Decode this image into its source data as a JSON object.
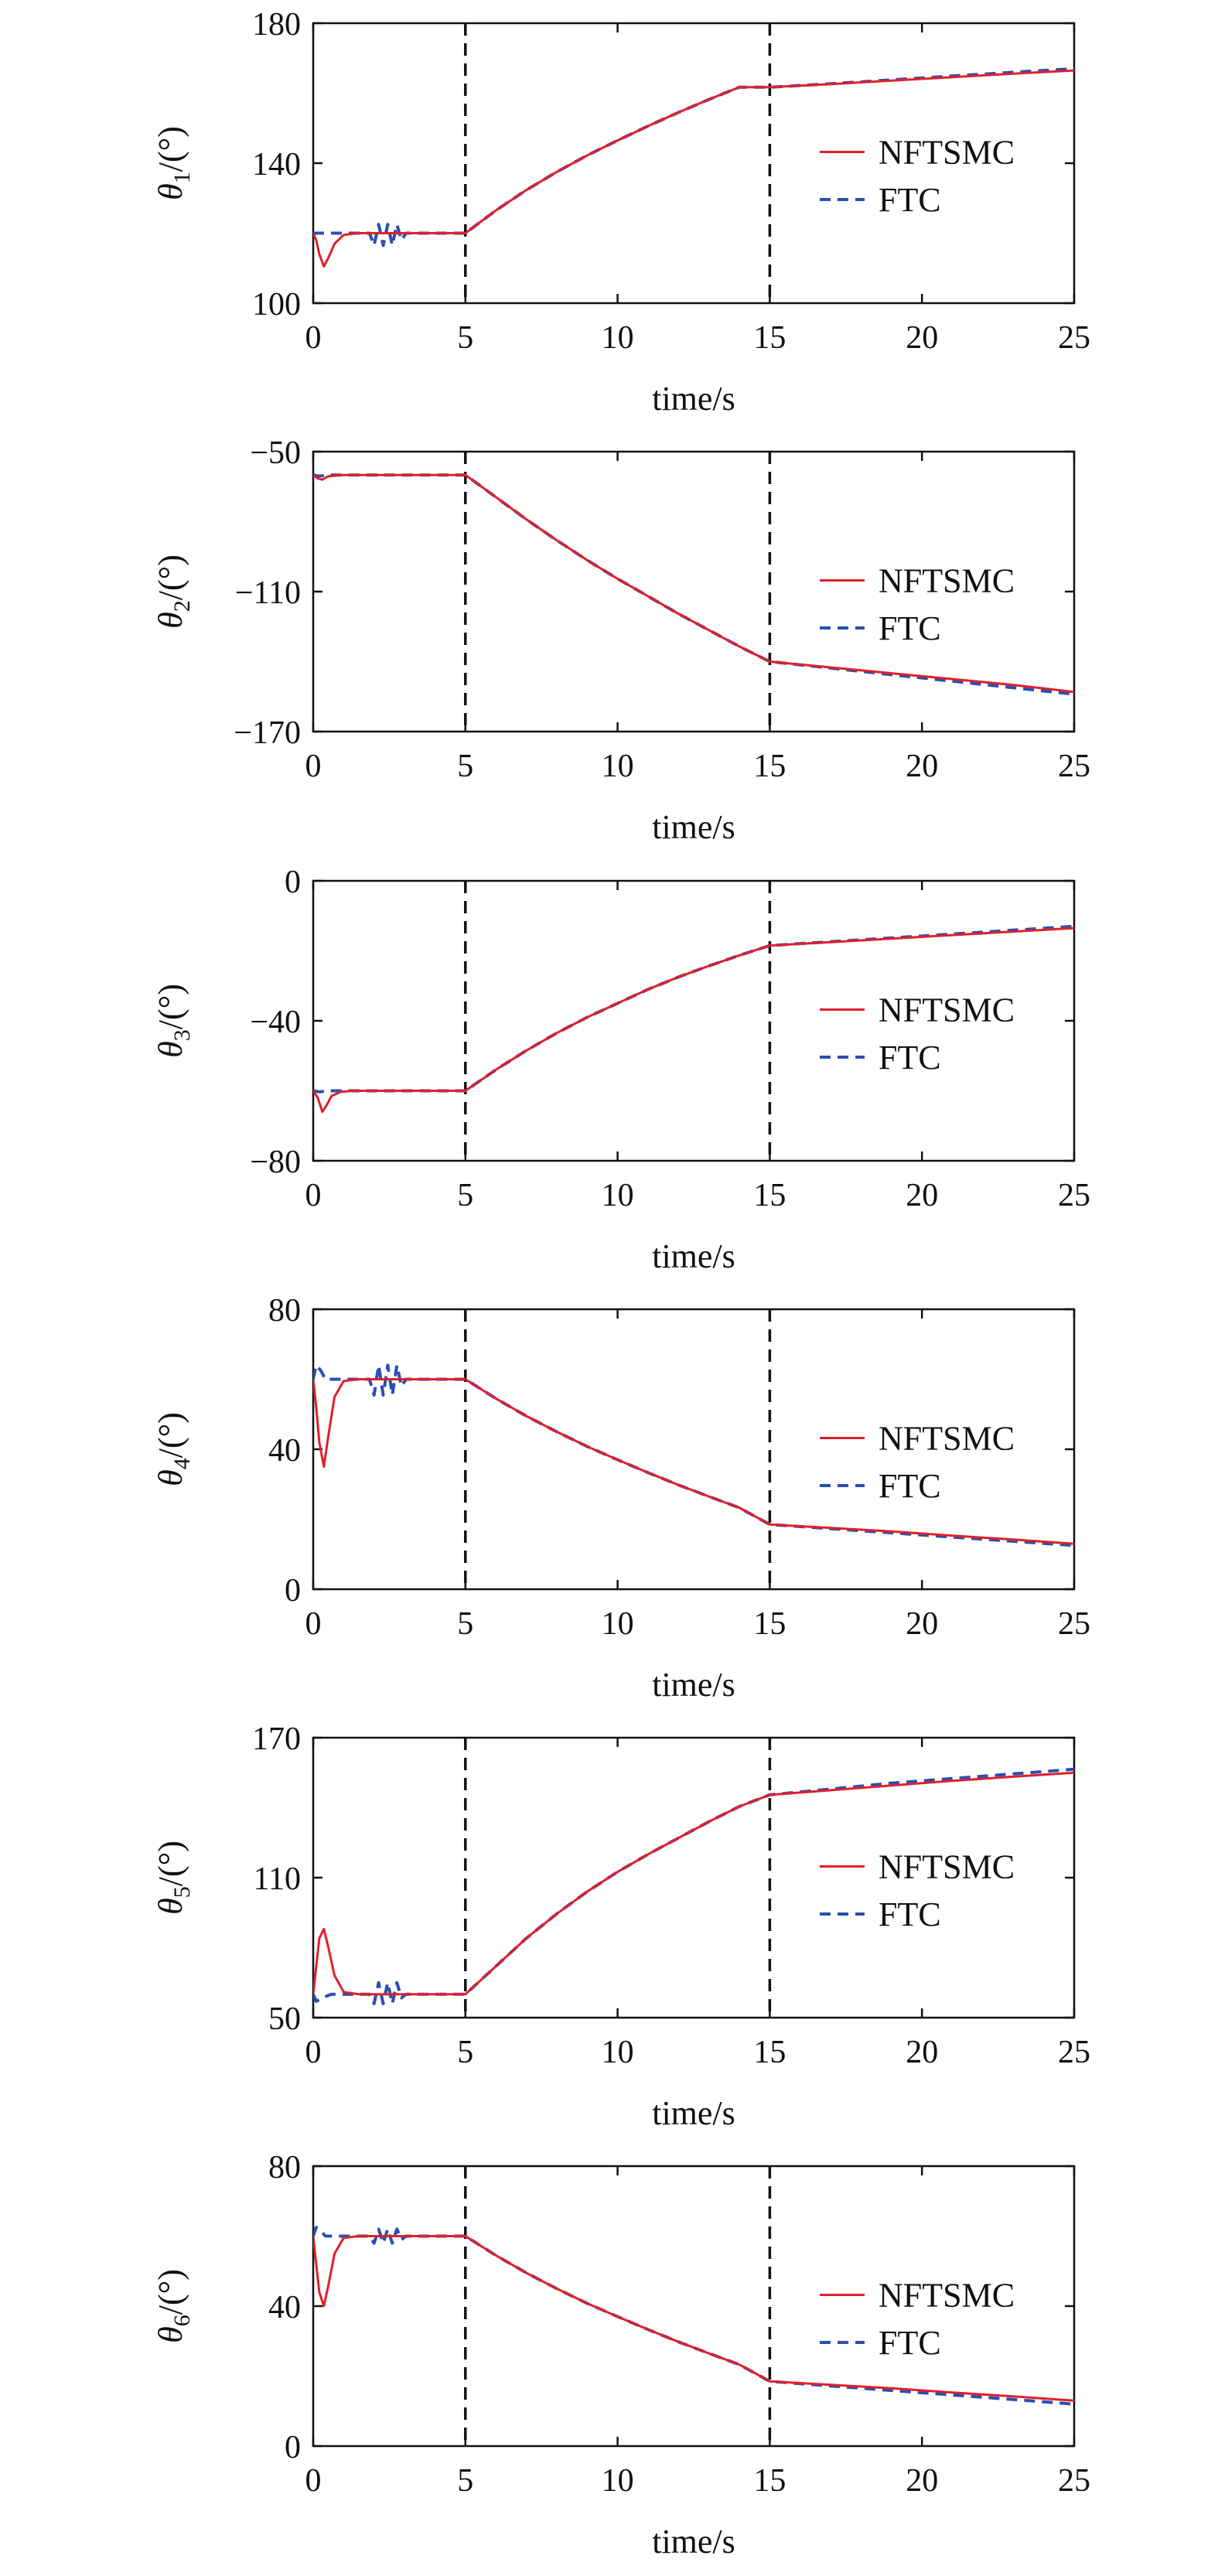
{
  "chart_data": [
    {
      "type": "line",
      "ylabel": {
        "symbol": "θ",
        "sub": "1",
        "unit": "/(°)"
      },
      "xlabel": "time/s",
      "xlim": [
        0,
        25
      ],
      "ylim": [
        100,
        180
      ],
      "xticks": [
        "0",
        "5",
        "10",
        "15",
        "20",
        "25"
      ],
      "yticks": [
        "100",
        "140",
        "180"
      ],
      "ytick_values": [
        100,
        140,
        180
      ],
      "vlines": [
        5,
        15
      ],
      "legend": {
        "position": "center-right",
        "entries": [
          "NFTSMC",
          "FTC"
        ]
      },
      "series": [
        {
          "name": "NFTSMC",
          "color": "#e0202a",
          "style": "solid",
          "x": [
            0,
            0.1,
            0.2,
            0.35,
            0.5,
            0.7,
            1.0,
            1.5,
            2,
            3,
            4,
            5,
            6,
            7,
            8,
            9,
            10,
            11,
            12,
            13,
            14,
            15,
            17,
            19,
            21,
            23,
            25
          ],
          "y": [
            120,
            118,
            114,
            110.5,
            113,
            117,
            119.5,
            120,
            120,
            120,
            120,
            120,
            126.5,
            132.3,
            137.5,
            142.2,
            146.5,
            150.6,
            154.5,
            158.2,
            161.7,
            161.7,
            162.6,
            163.6,
            164.6,
            165.6,
            166.5
          ]
        },
        {
          "name": "FTC",
          "color": "#2a4fb0",
          "style": "dashed",
          "x": [
            0,
            0.2,
            0.5,
            1.0,
            1.5,
            1.85,
            2.0,
            2.15,
            2.3,
            2.45,
            2.6,
            2.75,
            2.9,
            3.05,
            3.5,
            4,
            5,
            6,
            7,
            8,
            9,
            10,
            11,
            12,
            13,
            14,
            15,
            17,
            19,
            21,
            23,
            25
          ],
          "y": [
            120,
            120,
            120,
            120,
            120,
            120,
            116.5,
            122.5,
            116.5,
            122.5,
            116.5,
            122.5,
            118,
            120,
            120,
            120,
            120,
            126.5,
            132.3,
            137.5,
            142.2,
            146.5,
            150.6,
            154.5,
            158.2,
            161.7,
            161.7,
            162.7,
            163.8,
            164.9,
            166,
            167
          ]
        }
      ]
    },
    {
      "type": "line",
      "ylabel": {
        "symbol": "θ",
        "sub": "2",
        "unit": "/(°)"
      },
      "xlabel": "time/s",
      "xlim": [
        0,
        25
      ],
      "ylim": [
        -170,
        -50
      ],
      "xticks": [
        "0",
        "5",
        "10",
        "15",
        "20",
        "25"
      ],
      "yticks": [
        "−170",
        "−110",
        "−50"
      ],
      "ytick_values": [
        -170,
        -110,
        -50
      ],
      "vlines": [
        5,
        15
      ],
      "legend": {
        "position": "center-right",
        "entries": [
          "NFTSMC",
          "FTC"
        ]
      },
      "series": [
        {
          "name": "NFTSMC",
          "color": "#e0202a",
          "style": "solid",
          "x": [
            0,
            0.15,
            0.3,
            0.5,
            1,
            2,
            3,
            4,
            5,
            6,
            7,
            8,
            9,
            10,
            11,
            12,
            13,
            14,
            15,
            17,
            19,
            21,
            23,
            25
          ],
          "y": [
            -60,
            -61.5,
            -62,
            -60.5,
            -60,
            -60,
            -60,
            -60,
            -60,
            -69.5,
            -79,
            -88,
            -96.5,
            -104.5,
            -112,
            -119.5,
            -126.5,
            -133.5,
            -140,
            -142.5,
            -145,
            -147.5,
            -150,
            -153
          ]
        },
        {
          "name": "FTC",
          "color": "#2a4fb0",
          "style": "dashed",
          "x": [
            0,
            0.2,
            0.5,
            1,
            2,
            3,
            4,
            5,
            6,
            7,
            8,
            9,
            10,
            11,
            12,
            13,
            14,
            15,
            17,
            19,
            21,
            23,
            25
          ],
          "y": [
            -60,
            -60.5,
            -60,
            -60,
            -60,
            -60,
            -60,
            -60,
            -69.5,
            -79,
            -88,
            -96.5,
            -104.5,
            -112,
            -119.5,
            -126.5,
            -133.5,
            -140,
            -142.8,
            -145.6,
            -148.4,
            -151.2,
            -154
          ]
        }
      ]
    },
    {
      "type": "line",
      "ylabel": {
        "symbol": "θ",
        "sub": "3",
        "unit": "/(°)"
      },
      "xlabel": "time/s",
      "xlim": [
        0,
        25
      ],
      "ylim": [
        -80,
        0
      ],
      "xticks": [
        "0",
        "5",
        "10",
        "15",
        "20",
        "25"
      ],
      "yticks": [
        "−80",
        "−40",
        "0"
      ],
      "ytick_values": [
        -80,
        -40,
        0
      ],
      "vlines": [
        5,
        15
      ],
      "legend": {
        "position": "center-right",
        "entries": [
          "NFTSMC",
          "FTC"
        ]
      },
      "series": [
        {
          "name": "NFTSMC",
          "color": "#e0202a",
          "style": "solid",
          "x": [
            0,
            0.15,
            0.3,
            0.45,
            0.6,
            0.9,
            1.3,
            2,
            3,
            4,
            5,
            6,
            7,
            8,
            9,
            10,
            11,
            12,
            13,
            14,
            15,
            17,
            19,
            21,
            23,
            25
          ],
          "y": [
            -60,
            -62,
            -66,
            -64,
            -61.5,
            -60.3,
            -60,
            -60,
            -60,
            -60,
            -60,
            -54,
            -48.5,
            -43.5,
            -39,
            -35,
            -31,
            -27.5,
            -24.3,
            -21.3,
            -18.5,
            -17.5,
            -16.5,
            -15.5,
            -14.5,
            -13.5
          ]
        },
        {
          "name": "FTC",
          "color": "#2a4fb0",
          "style": "dashed",
          "x": [
            0,
            0.2,
            0.5,
            1,
            2,
            3,
            4,
            5,
            6,
            7,
            8,
            9,
            10,
            11,
            12,
            13,
            14,
            15,
            17,
            19,
            21,
            23,
            25
          ],
          "y": [
            -60,
            -60.3,
            -60,
            -60,
            -60,
            -60,
            -60,
            -60,
            -54,
            -48.5,
            -43.5,
            -39,
            -35,
            -31,
            -27.5,
            -24.3,
            -21.3,
            -18.5,
            -17.4,
            -16.3,
            -15.2,
            -14.1,
            -13
          ]
        }
      ]
    },
    {
      "type": "line",
      "ylabel": {
        "symbol": "θ",
        "sub": "4",
        "unit": "/(°)"
      },
      "xlabel": "time/s",
      "xlim": [
        0,
        25
      ],
      "ylim": [
        0,
        80
      ],
      "xticks": [
        "0",
        "5",
        "10",
        "15",
        "20",
        "25"
      ],
      "yticks": [
        "0",
        "40",
        "80"
      ],
      "ytick_values": [
        0,
        40,
        80
      ],
      "vlines": [
        5,
        15
      ],
      "legend": {
        "position": "center-right",
        "entries": [
          "NFTSMC",
          "FTC"
        ]
      },
      "series": [
        {
          "name": "NFTSMC",
          "color": "#e0202a",
          "style": "solid",
          "x": [
            0,
            0.1,
            0.2,
            0.35,
            0.5,
            0.7,
            1.0,
            1.5,
            2,
            3,
            4,
            5,
            6,
            7,
            8,
            9,
            10,
            11,
            12,
            13,
            14,
            15,
            17,
            19,
            21,
            23,
            25
          ],
          "y": [
            60,
            52,
            42,
            35,
            44,
            55,
            59.5,
            60,
            60,
            60,
            60,
            60,
            54.5,
            49.5,
            45,
            40.8,
            37,
            33.3,
            29.8,
            26.5,
            23.3,
            18.5,
            17.5,
            16.5,
            15.3,
            14.2,
            13
          ]
        },
        {
          "name": "FTC",
          "color": "#2a4fb0",
          "style": "dashed",
          "x": [
            0,
            0.1,
            0.25,
            0.4,
            0.6,
            1.0,
            1.5,
            1.85,
            2.0,
            2.15,
            2.3,
            2.45,
            2.6,
            2.75,
            2.9,
            3.05,
            3.5,
            4,
            5,
            6,
            7,
            8,
            9,
            10,
            11,
            12,
            13,
            14,
            15,
            17,
            19,
            21,
            23,
            25
          ],
          "y": [
            60,
            64,
            62.5,
            60,
            60,
            60,
            60,
            60,
            55.5,
            64,
            55.5,
            64,
            55.5,
            64,
            58,
            60,
            60,
            60,
            60,
            54.5,
            49.5,
            45,
            40.8,
            37,
            33.3,
            29.8,
            26.5,
            23.3,
            18.5,
            17.3,
            16.1,
            14.9,
            13.7,
            12.5
          ]
        }
      ]
    },
    {
      "type": "line",
      "ylabel": {
        "symbol": "θ",
        "sub": "5",
        "unit": "/(°)"
      },
      "xlabel": "time/s",
      "xlim": [
        0,
        25
      ],
      "ylim": [
        50,
        170
      ],
      "xticks": [
        "0",
        "5",
        "10",
        "15",
        "20",
        "25"
      ],
      "yticks": [
        "50",
        "110",
        "170"
      ],
      "ytick_values": [
        50,
        110,
        170
      ],
      "vlines": [
        5,
        15
      ],
      "legend": {
        "position": "center-right",
        "entries": [
          "NFTSMC",
          "FTC"
        ]
      },
      "series": [
        {
          "name": "NFTSMC",
          "color": "#e0202a",
          "style": "solid",
          "x": [
            0,
            0.1,
            0.2,
            0.35,
            0.5,
            0.7,
            1.0,
            1.5,
            2,
            3,
            4,
            5,
            6,
            7,
            8,
            9,
            10,
            11,
            12,
            13,
            14,
            15,
            17,
            19,
            21,
            23,
            25
          ],
          "y": [
            60,
            72,
            84,
            88,
            80,
            68,
            61,
            60,
            60,
            60,
            60,
            60,
            72,
            84,
            94.5,
            104,
            112.5,
            120,
            127,
            134,
            140.5,
            145.5,
            147.5,
            149.5,
            151.5,
            153.3,
            155
          ]
        },
        {
          "name": "FTC",
          "color": "#2a4fb0",
          "style": "dashed",
          "x": [
            0,
            0.1,
            0.3,
            0.6,
            1.0,
            1.5,
            1.85,
            2.0,
            2.15,
            2.3,
            2.45,
            2.6,
            2.75,
            2.9,
            3.05,
            3.5,
            4,
            5,
            6,
            7,
            8,
            9,
            10,
            11,
            12,
            13,
            14,
            15,
            17,
            19,
            21,
            23,
            25
          ],
          "y": [
            60,
            57,
            58.5,
            60,
            60,
            60,
            60,
            56,
            65,
            56,
            65,
            56,
            65,
            58.5,
            60,
            60,
            60,
            60,
            72,
            84,
            94.5,
            104,
            112.5,
            120,
            127,
            134,
            140.5,
            145.5,
            148,
            150.5,
            152.5,
            154.5,
            156.5
          ]
        }
      ]
    },
    {
      "type": "line",
      "ylabel": {
        "symbol": "θ",
        "sub": "6",
        "unit": "/(°)"
      },
      "xlabel": "time/s",
      "xlim": [
        0,
        25
      ],
      "ylim": [
        0,
        80
      ],
      "xticks": [
        "0",
        "5",
        "10",
        "15",
        "20",
        "25"
      ],
      "yticks": [
        "0",
        "40",
        "80"
      ],
      "ytick_values": [
        0,
        40,
        80
      ],
      "vlines": [
        5,
        15
      ],
      "legend": {
        "position": "center-right",
        "entries": [
          "NFTSMC",
          "FTC"
        ]
      },
      "series": [
        {
          "name": "NFTSMC",
          "color": "#e0202a",
          "style": "solid",
          "x": [
            0,
            0.1,
            0.2,
            0.35,
            0.5,
            0.7,
            1.0,
            1.5,
            2,
            3,
            4,
            5,
            6,
            7,
            8,
            9,
            10,
            11,
            12,
            13,
            14,
            15,
            17,
            19,
            21,
            23,
            25
          ],
          "y": [
            60,
            52,
            44,
            40,
            46,
            55,
            59.5,
            60,
            60,
            60,
            60,
            60,
            54.5,
            49.5,
            45,
            40.8,
            37,
            33.3,
            29.8,
            26.5,
            23.3,
            18.5,
            17.5,
            16.5,
            15.3,
            14.2,
            13
          ]
        },
        {
          "name": "FTC",
          "color": "#2a4fb0",
          "style": "dashed",
          "x": [
            0,
            0.1,
            0.25,
            0.4,
            0.6,
            1.0,
            1.5,
            1.85,
            2.0,
            2.15,
            2.3,
            2.45,
            2.6,
            2.75,
            2.9,
            3.05,
            3.5,
            4,
            5,
            6,
            7,
            8,
            9,
            10,
            11,
            12,
            13,
            14,
            15,
            17,
            19,
            21,
            23,
            25
          ],
          "y": [
            60,
            62.5,
            61.5,
            60,
            60,
            60,
            60,
            60,
            58,
            62,
            58,
            62,
            58,
            62,
            59,
            60,
            60,
            60,
            60,
            54.5,
            49.5,
            45,
            40.8,
            37,
            33.3,
            29.8,
            26.5,
            23.3,
            18.5,
            17.2,
            15.9,
            14.6,
            13.3,
            12
          ]
        }
      ]
    }
  ]
}
